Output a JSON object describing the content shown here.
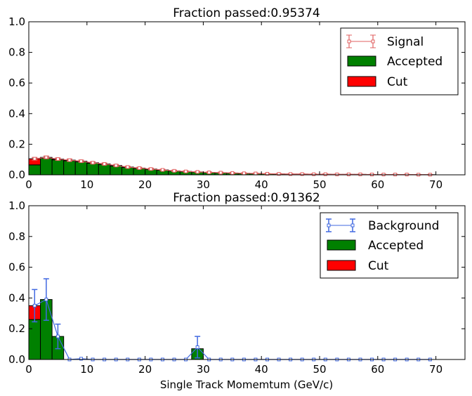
{
  "chart_data": [
    {
      "type": "bar",
      "title": "Fraction passed:0.95374",
      "xlabel": "",
      "ylabel": "",
      "xlim": [
        0,
        75
      ],
      "ylim": [
        0,
        1.0
      ],
      "xticks": [
        "0",
        "10",
        "20",
        "30",
        "40",
        "50",
        "60",
        "70"
      ],
      "yticks": [
        "0.0",
        "0.2",
        "0.4",
        "0.6",
        "0.8",
        "1.0"
      ],
      "grid": false,
      "legend_position": "top-right",
      "bin_width": 2,
      "bin_starts": [
        0,
        2,
        4,
        6,
        8,
        10,
        12,
        14,
        16,
        18,
        20,
        22,
        24,
        26,
        28,
        30,
        32,
        34,
        36,
        38,
        40,
        42,
        44,
        46,
        48,
        50,
        52,
        54,
        56,
        58,
        60,
        62,
        64,
        66,
        68
      ],
      "series": [
        {
          "name": "Accepted",
          "kind": "bar",
          "color": "#008000",
          "values": [
            0.065,
            0.108,
            0.098,
            0.092,
            0.085,
            0.076,
            0.068,
            0.058,
            0.049,
            0.042,
            0.036,
            0.03,
            0.025,
            0.021,
            0.018,
            0.015,
            0.013,
            0.011,
            0.009,
            0.008,
            0.007,
            0.006,
            0.005,
            0.005,
            0.004,
            0.004,
            0.003,
            0.003,
            0.003,
            0.002,
            0.002,
            0.002,
            0.002,
            0.001,
            0.001
          ]
        },
        {
          "name": "Cut",
          "kind": "bar",
          "color": "#ff0000",
          "values": [
            0.04,
            0.006,
            0.005,
            0.004,
            0.004,
            0.003,
            0.003,
            0.003,
            0.002,
            0.002,
            0.002,
            0.002,
            0.001,
            0.001,
            0.001,
            0.001,
            0.001,
            0.001,
            0.001,
            0.001,
            0,
            0,
            0,
            0,
            0,
            0,
            0,
            0,
            0,
            0,
            0,
            0,
            0,
            0,
            0
          ]
        },
        {
          "name": "Signal",
          "kind": "errorbar",
          "color": "#e06060",
          "x": [
            1,
            3,
            5,
            7,
            9,
            11,
            13,
            15,
            17,
            19,
            21,
            23,
            25,
            27,
            29,
            31,
            33,
            35,
            37,
            39,
            41,
            43,
            45,
            47,
            49,
            51,
            53,
            55,
            57,
            59,
            61,
            63,
            65,
            67,
            69
          ],
          "values": [
            0.105,
            0.114,
            0.103,
            0.096,
            0.089,
            0.079,
            0.071,
            0.061,
            0.051,
            0.044,
            0.038,
            0.032,
            0.026,
            0.022,
            0.019,
            0.016,
            0.014,
            0.012,
            0.01,
            0.009,
            0.007,
            0.006,
            0.005,
            0.005,
            0.004,
            0.004,
            0.003,
            0.003,
            0.003,
            0.002,
            0.002,
            0.002,
            0.002,
            0.001,
            0.001
          ],
          "errors": [
            0.008,
            0.008,
            0.007,
            0.007,
            0.007,
            0.006,
            0.006,
            0.006,
            0.005,
            0.005,
            0.005,
            0.004,
            0.004,
            0.004,
            0.003,
            0.003,
            0.003,
            0.003,
            0.003,
            0.002,
            0.002,
            0.002,
            0.002,
            0.002,
            0.002,
            0.002,
            0.001,
            0.001,
            0.001,
            0.001,
            0.001,
            0.001,
            0.001,
            0.001,
            0.001
          ]
        }
      ]
    },
    {
      "type": "bar",
      "title": "Fraction passed:0.91362",
      "xlabel": "Single Track Momemtum (GeV/c)",
      "ylabel": "",
      "xlim": [
        0,
        75
      ],
      "ylim": [
        0,
        1.0
      ],
      "xticks": [
        "0",
        "10",
        "20",
        "30",
        "40",
        "50",
        "60",
        "70"
      ],
      "yticks": [
        "0.0",
        "0.2",
        "0.4",
        "0.6",
        "0.8",
        "1.0"
      ],
      "grid": false,
      "legend_position": "top-right",
      "bin_width": 2,
      "bin_starts": [
        0,
        2,
        4,
        6,
        8,
        10,
        12,
        14,
        16,
        18,
        20,
        22,
        24,
        26,
        28,
        30,
        32,
        34,
        36,
        38,
        40,
        42,
        44,
        46,
        48,
        50,
        52,
        54,
        56,
        58,
        60,
        62,
        64,
        66,
        68
      ],
      "series": [
        {
          "name": "Accepted",
          "kind": "bar",
          "color": "#008000",
          "values": [
            0.26,
            0.39,
            0.15,
            0,
            0,
            0,
            0,
            0,
            0,
            0,
            0,
            0,
            0,
            0,
            0.07,
            0,
            0,
            0,
            0,
            0,
            0,
            0,
            0,
            0,
            0,
            0,
            0,
            0,
            0,
            0,
            0,
            0,
            0,
            0,
            0
          ]
        },
        {
          "name": "Cut",
          "kind": "bar",
          "color": "#ff0000",
          "values": [
            0.09,
            0,
            0,
            0,
            0,
            0,
            0,
            0,
            0,
            0,
            0,
            0,
            0,
            0,
            0,
            0,
            0,
            0,
            0,
            0,
            0,
            0,
            0,
            0,
            0,
            0,
            0,
            0,
            0,
            0,
            0,
            0,
            0,
            0,
            0
          ]
        },
        {
          "name": "Background",
          "kind": "errorbar",
          "color": "#4169e1",
          "x": [
            1,
            3,
            5,
            7,
            9,
            11,
            13,
            15,
            17,
            19,
            21,
            23,
            25,
            27,
            29,
            31,
            33,
            35,
            37,
            39,
            41,
            43,
            45,
            47,
            49,
            51,
            53,
            55,
            57,
            59,
            61,
            63,
            65,
            67,
            69
          ],
          "values": [
            0.35,
            0.39,
            0.15,
            0,
            0.005,
            0,
            0,
            0,
            0,
            0,
            0,
            0,
            0,
            0,
            0.08,
            0,
            0,
            0,
            0,
            0,
            0,
            0,
            0,
            0,
            0,
            0,
            0,
            0,
            0,
            0,
            0,
            0,
            0,
            0,
            0
          ],
          "errors": [
            0.105,
            0.135,
            0.08,
            0,
            0,
            0,
            0,
            0,
            0,
            0,
            0,
            0,
            0,
            0,
            0.07,
            0,
            0,
            0,
            0,
            0,
            0,
            0,
            0,
            0,
            0,
            0,
            0,
            0,
            0,
            0,
            0,
            0,
            0,
            0,
            0
          ]
        }
      ]
    }
  ]
}
